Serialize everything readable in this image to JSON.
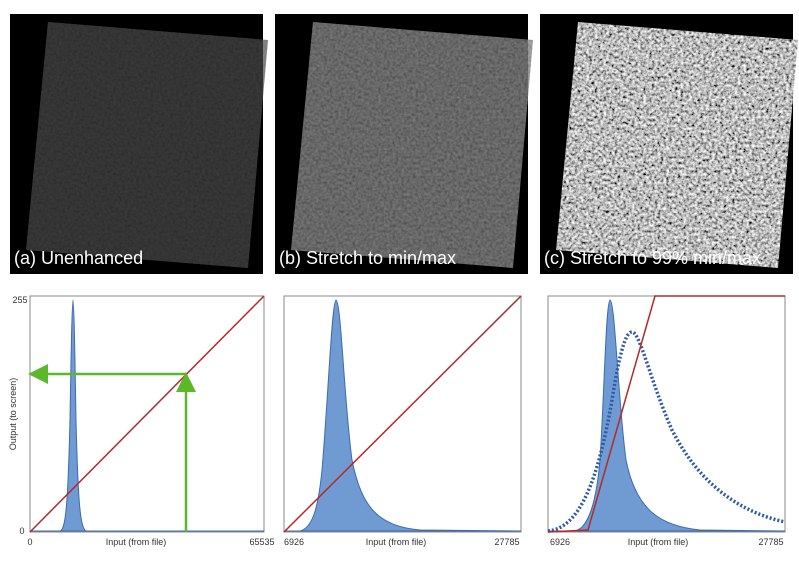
{
  "panels": [
    {
      "caption": "(a) Unenhanced"
    },
    {
      "caption": "(b) Stretch to min/max"
    },
    {
      "caption": "(c) Stretch to 99% min/max"
    }
  ],
  "plots": [
    {
      "x_label": "Input (from file)",
      "x_min": "0",
      "x_max": "65535",
      "y_label": "Output (to screen)",
      "y_min": "0",
      "y_max": "255"
    },
    {
      "x_label": "Input (from file)",
      "x_min": "6926",
      "x_max": "27785"
    },
    {
      "x_label": "Input (from file)",
      "x_min": "6926",
      "x_max": "27785"
    }
  ]
}
